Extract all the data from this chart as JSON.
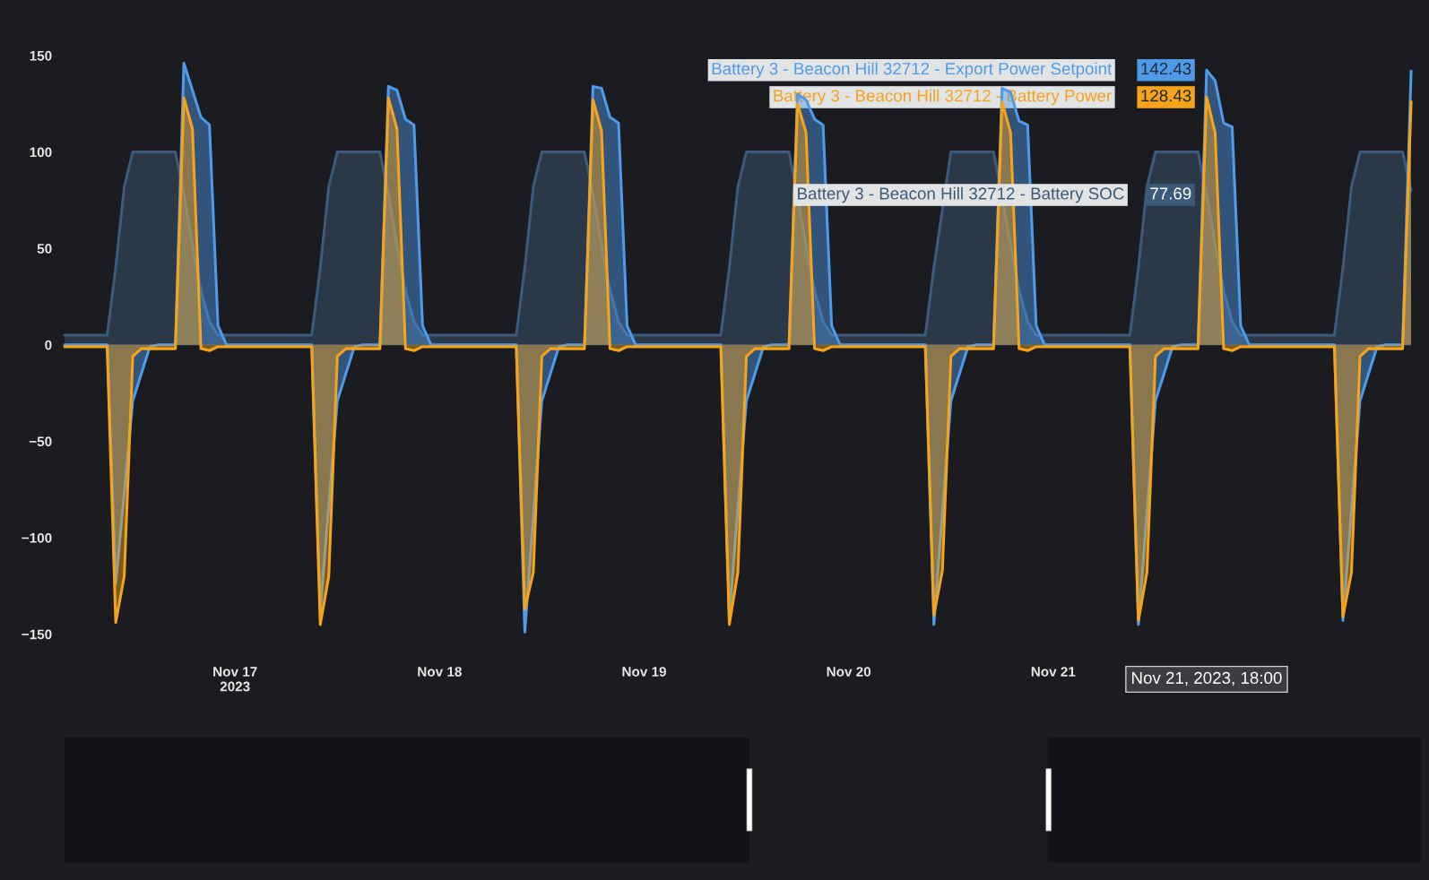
{
  "chart_data": {
    "type": "area",
    "xlim": [
      "2023-11-16T04:00",
      "2023-11-22T18:00"
    ],
    "xticks": [
      {
        "value": "2023-11-17",
        "label": "Nov 17\n2023"
      },
      {
        "value": "2023-11-18",
        "label": "Nov 18"
      },
      {
        "value": "2023-11-19",
        "label": "Nov 19"
      },
      {
        "value": "2023-11-20",
        "label": "Nov 20"
      },
      {
        "value": "2023-11-21",
        "label": "Nov 21"
      }
    ],
    "ylim": [
      -150,
      150
    ],
    "legend": "top right",
    "yticks": [
      {
        "value": 150,
        "label": "150"
      },
      {
        "value": 100,
        "label": "100"
      },
      {
        "value": 50,
        "label": "50"
      },
      {
        "value": 0,
        "label": "0"
      },
      {
        "value": -50,
        "label": "−50"
      },
      {
        "value": -100,
        "label": "−100"
      },
      {
        "value": -150,
        "label": "−150"
      }
    ],
    "grid": false,
    "ref_lines": [
      {
        "axis": "y",
        "value": 0,
        "color": "#3a3d44"
      }
    ],
    "annotations": [
      "Nov 21, 2023, 18:00"
    ],
    "series": [
      {
        "name": "Battery 3 - Beacon Hill 32712 - Battery SOC",
        "color": "#3d5a7a",
        "x": [
          "2023-11-16T04:00",
          "2023-11-16T09:00",
          "2023-11-16T10:00",
          "2023-11-16T11:00",
          "2023-11-16T12:00",
          "2023-11-16T17:00",
          "2023-11-16T18:00",
          "2023-11-16T19:00",
          "2023-11-16T20:00",
          "2023-11-16T21:00",
          "2023-11-16T22:00",
          "2023-11-17T09:00",
          "2023-11-17T10:00",
          "2023-11-17T11:00",
          "2023-11-17T12:00",
          "2023-11-17T17:00",
          "2023-11-17T18:00",
          "2023-11-17T19:00",
          "2023-11-17T20:00",
          "2023-11-17T21:00",
          "2023-11-17T22:00",
          "2023-11-18T09:00",
          "2023-11-18T10:00",
          "2023-11-18T11:00",
          "2023-11-18T12:00",
          "2023-11-18T17:00",
          "2023-11-18T18:00",
          "2023-11-18T19:00",
          "2023-11-18T20:00",
          "2023-11-18T21:00",
          "2023-11-18T22:00",
          "2023-11-19T09:00",
          "2023-11-19T10:00",
          "2023-11-19T11:00",
          "2023-11-19T12:00",
          "2023-11-19T17:00",
          "2023-11-19T18:00",
          "2023-11-19T19:00",
          "2023-11-19T20:00",
          "2023-11-19T21:00",
          "2023-11-19T22:00",
          "2023-11-20T09:00",
          "2023-11-20T10:00",
          "2023-11-20T11:00",
          "2023-11-20T12:00",
          "2023-11-20T17:00",
          "2023-11-20T18:00",
          "2023-11-20T19:00",
          "2023-11-20T20:00",
          "2023-11-20T21:00",
          "2023-11-20T22:00",
          "2023-11-21T09:00",
          "2023-11-21T10:00",
          "2023-11-21T11:00",
          "2023-11-21T12:00",
          "2023-11-21T17:00",
          "2023-11-21T18:00",
          "2023-11-21T19:00",
          "2023-11-21T20:00",
          "2023-11-21T21:00",
          "2023-11-21T22:00",
          "2023-11-22T09:00",
          "2023-11-22T10:00",
          "2023-11-22T11:00",
          "2023-11-22T12:00",
          "2023-11-22T17:00",
          "2023-11-22T18:00"
        ],
        "values": [
          5,
          5,
          40,
          82,
          100,
          100,
          78,
          52,
          28,
          12,
          5,
          5,
          40,
          82,
          100,
          100,
          78,
          52,
          28,
          12,
          5,
          5,
          40,
          82,
          100,
          100,
          78,
          52,
          28,
          12,
          5,
          5,
          40,
          82,
          100,
          100,
          null,
          52,
          28,
          12,
          5,
          5,
          40,
          null,
          100,
          100,
          null,
          52,
          28,
          12,
          5,
          5,
          40,
          82,
          100,
          100,
          77.69,
          52,
          28,
          12,
          5,
          5,
          40,
          82,
          100,
          100,
          80
        ],
        "value_labels": [
          null,
          null,
          null,
          null,
          null,
          null,
          null,
          null,
          null,
          null,
          null,
          null,
          null,
          null,
          null,
          null,
          null,
          null,
          null,
          null,
          null,
          null,
          null,
          null,
          null,
          null,
          null,
          null,
          null,
          null,
          null,
          null,
          null,
          null,
          null,
          null,
          null,
          null,
          null,
          null,
          null,
          null,
          null,
          null,
          null,
          null,
          null,
          null,
          null,
          null,
          null,
          null,
          null,
          null,
          null,
          null,
          "77.69",
          null,
          null,
          null,
          null,
          null,
          null,
          null,
          null,
          null,
          null
        ]
      },
      {
        "name": "Battery 3 - Beacon Hill 32712 - Export Power Setpoint",
        "color": "#4f9ae8",
        "x": [
          "2023-11-16T04:00",
          "2023-11-16T09:00",
          "2023-11-16T10:00",
          "2023-11-16T12:00",
          "2023-11-16T14:00",
          "2023-11-16T15:00",
          "2023-11-16T17:00",
          "2023-11-16T18:00",
          "2023-11-16T19:00",
          "2023-11-16T20:00",
          "2023-11-16T21:00",
          "2023-11-16T22:00",
          "2023-11-16T23:00",
          "2023-11-17T09:00",
          "2023-11-17T10:00",
          "2023-11-17T12:00",
          "2023-11-17T14:00",
          "2023-11-17T15:00",
          "2023-11-17T17:00",
          "2023-11-17T18:00",
          "2023-11-17T19:00",
          "2023-11-17T20:00",
          "2023-11-17T21:00",
          "2023-11-17T22:00",
          "2023-11-17T23:00",
          "2023-11-18T09:00",
          "2023-11-18T10:00",
          "2023-11-18T12:00",
          "2023-11-18T14:00",
          "2023-11-18T15:00",
          "2023-11-18T17:00",
          "2023-11-18T18:00",
          "2023-11-18T19:00",
          "2023-11-18T20:00",
          "2023-11-18T21:00",
          "2023-11-18T22:00",
          "2023-11-18T23:00",
          "2023-11-19T09:00",
          "2023-11-19T10:00",
          "2023-11-19T12:00",
          "2023-11-19T14:00",
          "2023-11-19T15:00",
          "2023-11-19T17:00",
          "2023-11-19T18:00",
          "2023-11-19T19:00",
          "2023-11-19T20:00",
          "2023-11-19T21:00",
          "2023-11-19T22:00",
          "2023-11-19T23:00",
          "2023-11-20T09:00",
          "2023-11-20T10:00",
          "2023-11-20T12:00",
          "2023-11-20T14:00",
          "2023-11-20T15:00",
          "2023-11-20T17:00",
          "2023-11-20T18:00",
          "2023-11-20T19:00",
          "2023-11-20T20:00",
          "2023-11-20T21:00",
          "2023-11-20T22:00",
          "2023-11-20T23:00",
          "2023-11-21T09:00",
          "2023-11-21T10:00",
          "2023-11-21T12:00",
          "2023-11-21T14:00",
          "2023-11-21T15:00",
          "2023-11-21T17:00",
          "2023-11-21T18:00",
          "2023-11-21T19:00",
          "2023-11-21T20:00",
          "2023-11-21T21:00",
          "2023-11-21T22:00",
          "2023-11-21T23:00",
          "2023-11-22T09:00",
          "2023-11-22T10:00",
          "2023-11-22T12:00",
          "2023-11-22T14:00",
          "2023-11-22T15:00",
          "2023-11-22T17:00",
          "2023-11-22T18:00"
        ],
        "values": [
          0,
          0,
          -124,
          -29,
          -1,
          0,
          0,
          146,
          132,
          118,
          114,
          10,
          0,
          0,
          -138,
          -29,
          -1,
          0,
          0,
          134,
          132,
          117,
          114,
          10,
          0,
          0,
          -149,
          -29,
          -1,
          0,
          0,
          134,
          133,
          118,
          115,
          10,
          0,
          0,
          -141,
          -29,
          -1,
          0,
          0,
          130,
          127,
          117,
          114,
          10,
          0,
          0,
          -145,
          -29,
          -1,
          0,
          0,
          133,
          131,
          116,
          114,
          10,
          0,
          0,
          -145,
          -29,
          -1,
          0,
          0,
          142.43,
          137,
          115,
          113,
          10,
          0,
          0,
          -143,
          -29,
          -1,
          0,
          0,
          142
        ],
        "value_labels": [
          null,
          null,
          null,
          null,
          null,
          null,
          null,
          null,
          null,
          null,
          null,
          null,
          null,
          null,
          null,
          null,
          null,
          null,
          null,
          null,
          null,
          null,
          null,
          null,
          null,
          null,
          null,
          null,
          null,
          null,
          null,
          null,
          null,
          null,
          null,
          null,
          null,
          null,
          null,
          null,
          null,
          null,
          null,
          null,
          null,
          null,
          null,
          null,
          null,
          null,
          null,
          null,
          null,
          null,
          null,
          null,
          null,
          null,
          null,
          null,
          null,
          null,
          null,
          null,
          null,
          null,
          null,
          "142.43",
          null,
          null,
          null,
          null,
          null,
          null,
          null,
          null,
          null,
          null,
          null,
          null
        ]
      },
      {
        "name": "Battery 3 - Beacon Hill 32712 - Battery Power",
        "color": "#f5a31a",
        "x": [
          "2023-11-16T04:00",
          "2023-11-16T09:00",
          "2023-11-16T10:00",
          "2023-11-16T11:00",
          "2023-11-16T12:00",
          "2023-11-16T13:00",
          "2023-11-16T17:00",
          "2023-11-16T18:00",
          "2023-11-16T19:00",
          "2023-11-16T20:00",
          "2023-11-16T21:00",
          "2023-11-16T22:00",
          "2023-11-17T09:00",
          "2023-11-17T10:00",
          "2023-11-17T11:00",
          "2023-11-17T12:00",
          "2023-11-17T13:00",
          "2023-11-17T17:00",
          "2023-11-17T18:00",
          "2023-11-17T19:00",
          "2023-11-17T20:00",
          "2023-11-17T21:00",
          "2023-11-17T22:00",
          "2023-11-18T09:00",
          "2023-11-18T10:00",
          "2023-11-18T11:00",
          "2023-11-18T12:00",
          "2023-11-18T13:00",
          "2023-11-18T17:00",
          "2023-11-18T18:00",
          "2023-11-18T19:00",
          "2023-11-18T20:00",
          "2023-11-18T21:00",
          "2023-11-18T22:00",
          "2023-11-19T09:00",
          "2023-11-19T10:00",
          "2023-11-19T11:00",
          "2023-11-19T12:00",
          "2023-11-19T13:00",
          "2023-11-19T17:00",
          "2023-11-19T18:00",
          "2023-11-19T19:00",
          "2023-11-19T20:00",
          "2023-11-19T21:00",
          "2023-11-19T22:00",
          "2023-11-20T09:00",
          "2023-11-20T10:00",
          "2023-11-20T11:00",
          "2023-11-20T12:00",
          "2023-11-20T13:00",
          "2023-11-20T17:00",
          "2023-11-20T18:00",
          "2023-11-20T19:00",
          "2023-11-20T20:00",
          "2023-11-20T21:00",
          "2023-11-20T22:00",
          "2023-11-21T09:00",
          "2023-11-21T10:00",
          "2023-11-21T11:00",
          "2023-11-21T12:00",
          "2023-11-21T13:00",
          "2023-11-21T17:00",
          "2023-11-21T18:00",
          "2023-11-21T19:00",
          "2023-11-21T20:00",
          "2023-11-21T21:00",
          "2023-11-21T22:00",
          "2023-11-22T09:00",
          "2023-11-22T10:00",
          "2023-11-22T11:00",
          "2023-11-22T12:00",
          "2023-11-22T13:00",
          "2023-11-22T17:00",
          "2023-11-22T18:00"
        ],
        "values": [
          -1,
          -1,
          -144,
          -120,
          -6,
          -2,
          -2,
          128,
          112,
          -2,
          -3,
          -1,
          -1,
          -145,
          -120,
          -6,
          -2,
          -2,
          128,
          112,
          -2,
          -3,
          -1,
          -1,
          -137,
          -118,
          -6,
          -2,
          -2,
          127,
          111,
          -2,
          -3,
          -1,
          -1,
          -145,
          -118,
          -6,
          -2,
          -2,
          125,
          110,
          -2,
          -3,
          -1,
          -1,
          -140,
          -117,
          -6,
          -2,
          -2,
          126,
          110,
          -2,
          -3,
          -1,
          -1,
          -143,
          -118,
          -6,
          -2,
          -2,
          128.43,
          110,
          -2,
          -3,
          -1,
          -1,
          -141,
          -118,
          -6,
          -2,
          -2,
          126
        ],
        "value_labels": [
          null,
          null,
          null,
          null,
          null,
          null,
          null,
          null,
          null,
          null,
          null,
          null,
          null,
          null,
          null,
          null,
          null,
          null,
          null,
          null,
          null,
          null,
          null,
          null,
          null,
          null,
          null,
          null,
          null,
          null,
          null,
          null,
          null,
          null,
          null,
          null,
          null,
          null,
          null,
          null,
          null,
          null,
          null,
          null,
          null,
          null,
          null,
          null,
          null,
          null,
          null,
          null,
          null,
          null,
          null,
          null,
          null,
          null,
          null,
          null,
          null,
          null,
          "128.43",
          null,
          null,
          null,
          null,
          null,
          null,
          null,
          null,
          null,
          null,
          null
        ]
      }
    ]
  }
}
